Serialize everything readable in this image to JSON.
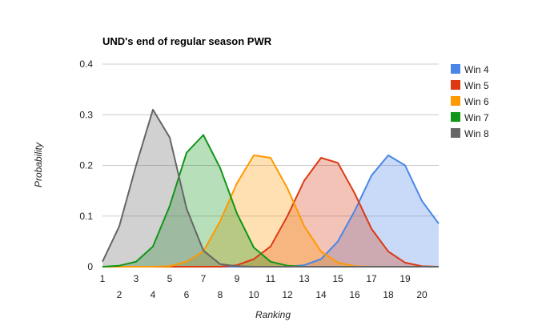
{
  "chart_data": {
    "type": "area",
    "title": "UND's end of regular season PWR",
    "xlabel": "Ranking",
    "ylabel": "Probability",
    "ylim": [
      0,
      0.4
    ],
    "yticks": [
      "0",
      "0.1",
      "0.2",
      "0.3",
      "0.4"
    ],
    "x": [
      1,
      2,
      3,
      4,
      5,
      6,
      7,
      8,
      9,
      10,
      11,
      12,
      13,
      14,
      15,
      16,
      17,
      18,
      19,
      20,
      21
    ],
    "xtick_labels": [
      "1",
      "2",
      "3",
      "4",
      "5",
      "6",
      "7",
      "8",
      "9",
      "10",
      "11",
      "12",
      "13",
      "14",
      "15",
      "16",
      "17",
      "18",
      "19",
      "20"
    ],
    "grid": true,
    "legend_position": "right",
    "series": [
      {
        "name": "Win 4",
        "color": "#4a86e8",
        "values": [
          0,
          0,
          0,
          0,
          0,
          0,
          0,
          0,
          0,
          0,
          0,
          0,
          0.003,
          0.015,
          0.05,
          0.11,
          0.18,
          0.22,
          0.2,
          0.13,
          0.085
        ]
      },
      {
        "name": "Win 5",
        "color": "#dc3912",
        "values": [
          0,
          0,
          0,
          0,
          0,
          0,
          0,
          0,
          0.003,
          0.015,
          0.04,
          0.1,
          0.17,
          0.215,
          0.205,
          0.145,
          0.075,
          0.03,
          0.008,
          0.001,
          0
        ]
      },
      {
        "name": "Win 6",
        "color": "#ff9900",
        "values": [
          0,
          0,
          0,
          0,
          0.001,
          0.01,
          0.03,
          0.09,
          0.165,
          0.22,
          0.215,
          0.155,
          0.08,
          0.03,
          0.008,
          0.001,
          0,
          0,
          0,
          0,
          0
        ]
      },
      {
        "name": "Win 7",
        "color": "#109618",
        "values": [
          0,
          0.002,
          0.01,
          0.04,
          0.12,
          0.225,
          0.26,
          0.195,
          0.105,
          0.038,
          0.01,
          0.002,
          0,
          0,
          0,
          0,
          0,
          0,
          0,
          0,
          0
        ]
      },
      {
        "name": "Win 8",
        "color": "#666666",
        "values": [
          0.01,
          0.08,
          0.2,
          0.31,
          0.255,
          0.115,
          0.032,
          0.005,
          0.001,
          0,
          0,
          0,
          0,
          0,
          0,
          0,
          0,
          0,
          0,
          0,
          0
        ]
      }
    ]
  }
}
